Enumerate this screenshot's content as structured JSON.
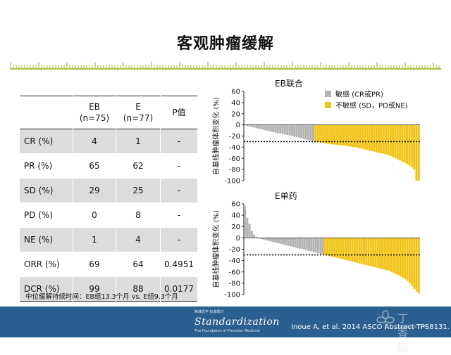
{
  "slide": {
    "title": "客观肿瘤缓解",
    "accent_color": "#a9c23f"
  },
  "table": {
    "headers": [
      "",
      "EB\n(n=75)",
      "E\n(n=77)",
      "P值"
    ],
    "rows": [
      [
        "CR (%)",
        "4",
        "1",
        "-"
      ],
      [
        "PR (%)",
        "65",
        "62",
        "-"
      ],
      [
        "SD (%)",
        "29",
        "25",
        "-"
      ],
      [
        "PD (%)",
        "0",
        "8",
        "-"
      ],
      [
        "NE (%)",
        "1",
        "4",
        "-"
      ],
      [
        "ORR (%)",
        "69",
        "64",
        "0.4951"
      ],
      [
        "DCR (%)",
        "99",
        "88",
        "0.0177"
      ]
    ]
  },
  "footnote": "中位缓解持续时间：EB组13.3个月 vs. E组9.3个月",
  "footer": {
    "brand": "Standardization",
    "brand_line_top": "精准医学 标准探讨",
    "brand_line_bottom": "The Foundation of Precision Medicine",
    "citation": "Inoue A, et al. 2014 ASCO Abstract TPS8131.",
    "watermark": "丁香园",
    "watermark_sub": "WWW.DXY.CN"
  },
  "chart_data": [
    {
      "type": "bar",
      "title": "EB联合",
      "ylabel": "自基线肿瘤体积变化 (%)",
      "ylim": [
        -100,
        60
      ],
      "yticks": [
        60,
        40,
        20,
        0,
        -20,
        -40,
        -60,
        -80,
        -100
      ],
      "threshold": -30,
      "legend": [
        {
          "name": "敏感 (CR或PR)",
          "color": "#b3b3b3"
        },
        {
          "name": "不敏感 (SD，PD或NE)",
          "color": "#f0c419"
        }
      ],
      "legend_position": "top-right",
      "series": [
        {
          "name": "敏感 (CR或PR)",
          "color": "#b3b3b3"
        },
        {
          "name": "不敏感 (SD，PD或NE)",
          "color": "#f0c419"
        }
      ],
      "values": [
        -1,
        -2,
        -3,
        -4,
        -5,
        -6,
        -7,
        -8,
        -9,
        -10,
        -11,
        -12,
        -13,
        -14,
        -15,
        -15,
        -16,
        -17,
        -18,
        -19,
        -20,
        -21,
        -22,
        -23,
        -24,
        -25,
        -26,
        -27,
        -28,
        -29,
        -30,
        -31,
        -32,
        -32,
        -33,
        -34,
        -34,
        -35,
        -35,
        -36,
        -36,
        -37,
        -37,
        -38,
        -38,
        -39,
        -40,
        -40,
        -41,
        -42,
        -43,
        -44,
        -45,
        -46,
        -47,
        -48,
        -49,
        -50,
        -51,
        -52,
        -53,
        -54,
        -56,
        -58,
        -60,
        -62,
        -64,
        -66,
        -68,
        -70,
        -73,
        -76,
        -80,
        -100,
        -100
      ],
      "categories_series": [
        0,
        0,
        0,
        0,
        0,
        0,
        0,
        0,
        0,
        0,
        0,
        0,
        0,
        0,
        0,
        0,
        0,
        0,
        0,
        0,
        0,
        0,
        0,
        0,
        0,
        0,
        0,
        0,
        0,
        0,
        1,
        1,
        1,
        1,
        1,
        1,
        1,
        1,
        1,
        1,
        1,
        1,
        1,
        1,
        1,
        1,
        1,
        1,
        1,
        1,
        1,
        1,
        1,
        1,
        1,
        1,
        1,
        1,
        1,
        1,
        1,
        1,
        1,
        1,
        1,
        1,
        1,
        1,
        1,
        1,
        1,
        1,
        1,
        1,
        1
      ]
    },
    {
      "type": "bar",
      "title": "E单药",
      "ylabel": "自基线肿瘤体积变化 (%)",
      "ylim": [
        -100,
        60
      ],
      "yticks": [
        60,
        40,
        20,
        0,
        -20,
        -40,
        -60,
        -80,
        -100
      ],
      "threshold": -30,
      "series": [
        {
          "name": "敏感 (CR或PR)",
          "color": "#b3b3b3"
        },
        {
          "name": "不敏感 (SD，PD或NE)",
          "color": "#f0c419"
        }
      ],
      "values": [
        55,
        35,
        25,
        12,
        6,
        2,
        -1,
        -2,
        -3,
        -4,
        -5,
        -6,
        -7,
        -8,
        -9,
        -10,
        -11,
        -12,
        -13,
        -14,
        -15,
        -16,
        -17,
        -18,
        -19,
        -20,
        -21,
        -22,
        -23,
        -24,
        -25,
        -26,
        -27,
        -28,
        -29,
        -30,
        -31,
        -32,
        -33,
        -34,
        -35,
        -36,
        -37,
        -38,
        -39,
        -40,
        -41,
        -42,
        -43,
        -44,
        -45,
        -46,
        -47,
        -48,
        -49,
        -50,
        -51,
        -52,
        -53,
        -54,
        -55,
        -56,
        -57,
        -58,
        -60,
        -62,
        -64,
        -66,
        -68,
        -70,
        -73,
        -76,
        -80,
        -85,
        -90,
        -95,
        -98
      ],
      "categories_series": [
        0,
        0,
        0,
        0,
        0,
        0,
        0,
        0,
        0,
        0,
        0,
        0,
        0,
        0,
        0,
        0,
        0,
        0,
        0,
        0,
        0,
        0,
        0,
        0,
        0,
        0,
        0,
        0,
        0,
        0,
        0,
        0,
        0,
        0,
        0,
        1,
        1,
        1,
        1,
        1,
        1,
        1,
        1,
        1,
        1,
        1,
        1,
        1,
        1,
        1,
        1,
        1,
        1,
        1,
        1,
        1,
        1,
        1,
        1,
        1,
        1,
        1,
        1,
        1,
        1,
        1,
        1,
        1,
        1,
        1,
        1,
        1,
        1,
        1,
        1,
        1,
        1
      ]
    }
  ]
}
